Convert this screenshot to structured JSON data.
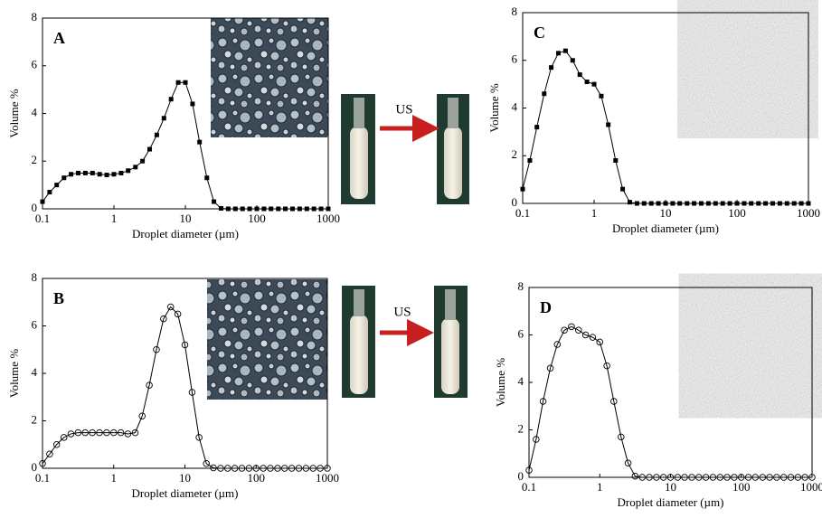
{
  "chart_data": [
    {
      "type": "line",
      "title": "A",
      "xlabel": "Droplet diameter (µm)",
      "ylabel": "Volume %",
      "xscale": "log",
      "marker": "square",
      "color": "#000000",
      "x": [
        0.1,
        0.126,
        0.158,
        0.2,
        0.251,
        0.316,
        0.398,
        0.501,
        0.631,
        0.794,
        1,
        1.26,
        1.58,
        2,
        2.51,
        3.16,
        3.98,
        5.01,
        6.31,
        7.94,
        10,
        12.6,
        15.8,
        20,
        25.1,
        31.6,
        39.8,
        50.1,
        63.1,
        79.4,
        100,
        126,
        158,
        200,
        251,
        316,
        398,
        501,
        631,
        794,
        1000
      ],
      "values": [
        0.3,
        0.7,
        1.0,
        1.3,
        1.45,
        1.5,
        1.5,
        1.5,
        1.45,
        1.42,
        1.45,
        1.5,
        1.6,
        1.75,
        2.0,
        2.5,
        3.1,
        3.8,
        4.6,
        5.3,
        5.3,
        4.4,
        2.8,
        1.3,
        0.3,
        0.02,
        0,
        0,
        0,
        0,
        0,
        0,
        0,
        0,
        0,
        0,
        0,
        0,
        0,
        0,
        0
      ],
      "xlim": [
        0.1,
        1000
      ],
      "xticks": [
        0.1,
        1,
        10,
        100,
        1000
      ],
      "ylim": [
        0,
        8
      ],
      "yticks": [
        0,
        2,
        4,
        6,
        8
      ]
    },
    {
      "type": "line",
      "title": "B",
      "xlabel": "Droplet diameter (µm)",
      "ylabel": "Volume %",
      "xscale": "log",
      "marker": "open-circle",
      "color": "#000000",
      "x": [
        0.1,
        0.126,
        0.158,
        0.2,
        0.251,
        0.316,
        0.398,
        0.501,
        0.631,
        0.794,
        1,
        1.26,
        1.58,
        2,
        2.51,
        3.16,
        3.98,
        5.01,
        6.31,
        7.94,
        10,
        12.6,
        15.8,
        20,
        25.1,
        31.6,
        39.8,
        50.1,
        63.1,
        79.4,
        100,
        126,
        158,
        200,
        251,
        316,
        398,
        501,
        631,
        794,
        1000
      ],
      "values": [
        0.2,
        0.6,
        1.0,
        1.3,
        1.45,
        1.5,
        1.5,
        1.5,
        1.5,
        1.5,
        1.5,
        1.5,
        1.45,
        1.5,
        2.2,
        3.5,
        5.0,
        6.3,
        6.8,
        6.5,
        5.2,
        3.2,
        1.3,
        0.2,
        0.02,
        0,
        0,
        0,
        0,
        0,
        0,
        0,
        0,
        0,
        0,
        0,
        0,
        0,
        0,
        0,
        0
      ],
      "xlim": [
        0.1,
        1000
      ],
      "xticks": [
        0.1,
        1,
        10,
        100,
        1000
      ],
      "ylim": [
        0,
        8
      ],
      "yticks": [
        0,
        2,
        4,
        6,
        8
      ]
    },
    {
      "type": "line",
      "title": "C",
      "xlabel": "Droplet diameter (µm)",
      "ylabel": "Volume %",
      "xscale": "log",
      "marker": "square",
      "color": "#000000",
      "x": [
        0.1,
        0.126,
        0.158,
        0.2,
        0.251,
        0.316,
        0.398,
        0.501,
        0.631,
        0.794,
        1,
        1.26,
        1.58,
        2,
        2.51,
        3.16,
        3.98,
        5.01,
        6.31,
        7.94,
        10,
        12.6,
        15.8,
        20,
        25.1,
        31.6,
        39.8,
        50.1,
        63.1,
        79.4,
        100,
        126,
        158,
        200,
        251,
        316,
        398,
        501,
        631,
        794,
        1000
      ],
      "values": [
        0.6,
        1.8,
        3.2,
        4.6,
        5.7,
        6.3,
        6.4,
        6.0,
        5.4,
        5.1,
        5.0,
        4.5,
        3.3,
        1.8,
        0.6,
        0.05,
        0,
        0,
        0,
        0,
        0,
        0,
        0,
        0,
        0,
        0,
        0,
        0,
        0,
        0,
        0,
        0,
        0,
        0,
        0,
        0,
        0,
        0,
        0,
        0,
        0
      ],
      "xlim": [
        0.1,
        1000
      ],
      "xticks": [
        0.1,
        1,
        10,
        100,
        1000
      ],
      "ylim": [
        0,
        8
      ],
      "yticks": [
        0,
        2,
        4,
        6,
        8
      ]
    },
    {
      "type": "line",
      "title": "D",
      "xlabel": "Droplet diameter (µm)",
      "ylabel": "Volume %",
      "xscale": "log",
      "marker": "open-circle",
      "color": "#000000",
      "x": [
        0.1,
        0.126,
        0.158,
        0.2,
        0.251,
        0.316,
        0.398,
        0.501,
        0.631,
        0.794,
        1,
        1.26,
        1.58,
        2,
        2.51,
        3.16,
        3.98,
        5.01,
        6.31,
        7.94,
        10,
        12.6,
        15.8,
        20,
        25.1,
        31.6,
        39.8,
        50.1,
        63.1,
        79.4,
        100,
        126,
        158,
        200,
        251,
        316,
        398,
        501,
        631,
        794,
        1000
      ],
      "values": [
        0.3,
        1.6,
        3.2,
        4.6,
        5.6,
        6.2,
        6.35,
        6.2,
        6.0,
        5.9,
        5.7,
        4.7,
        3.2,
        1.7,
        0.6,
        0.05,
        0,
        0,
        0,
        0,
        0,
        0,
        0,
        0,
        0,
        0,
        0,
        0,
        0,
        0,
        0,
        0,
        0,
        0,
        0,
        0,
        0,
        0,
        0,
        0,
        0
      ],
      "xlim": [
        0.1,
        1000
      ],
      "xticks": [
        0.1,
        1,
        10,
        100,
        1000
      ],
      "ylim": [
        0,
        8
      ],
      "yticks": [
        0,
        2,
        4,
        6,
        8
      ]
    }
  ],
  "arrows": [
    {
      "label": "US"
    },
    {
      "label": "US"
    }
  ]
}
